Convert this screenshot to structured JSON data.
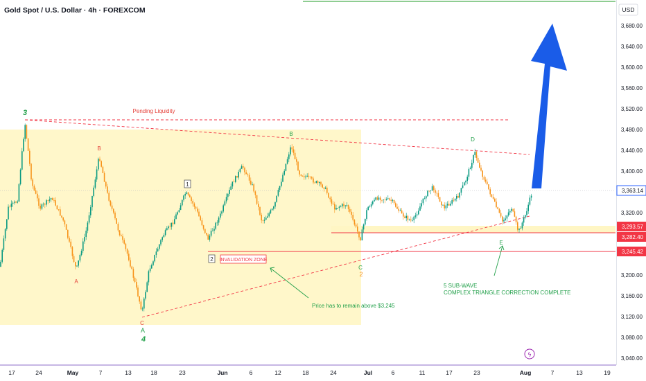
{
  "header": {
    "symbol_title": "Gold Spot / U.S. Dollar · 4h · FOREXCOM",
    "currency_label": "USD"
  },
  "price_axis": {
    "ticks": [
      "3,680.00",
      "3,640.00",
      "3,600.00",
      "3,560.00",
      "3,520.00",
      "3,480.00",
      "3,440.00",
      "3,400.00",
      "3,320.00",
      "3,200.00",
      "3,160.00",
      "3,120.00",
      "3,080.00",
      "3,040.00"
    ],
    "badges": [
      {
        "label": "3,363.14",
        "color": "#2962ff"
      },
      {
        "label": "3,293.57",
        "color": "#f23645"
      },
      {
        "label": "3,282.40",
        "color": "#f23645"
      },
      {
        "label": "3,245.42",
        "color": "#f23645"
      }
    ]
  },
  "time_axis": {
    "ticks": [
      "17",
      "24",
      "May",
      "7",
      "13",
      "18",
      "23",
      "Jun",
      "6",
      "12",
      "18",
      "24",
      "Jul",
      "6",
      "11",
      "17",
      "23",
      "Aug",
      "7",
      "13",
      "19"
    ]
  },
  "annotations": {
    "pending_liquidity": "Pending Liquidity",
    "invalidation_zone": "INVALIDATION ZONE",
    "price_note": "Price has to remain above $3,245",
    "subwave_line1": "5 SUB-WAVE",
    "subwave_line2": "COMPLEX TRIANGLE CORRECTION COMPLETE",
    "wave_3": "3",
    "wave_4": "4",
    "wave_A_low": "A",
    "wave_A_left": "A",
    "wave_B_left": "B",
    "wave_C_bottom": "C",
    "wave_B_mid": "B",
    "wave_C_mid": "C",
    "wave_2_mid": "2",
    "wave_D": "D",
    "wave_E": "E",
    "box_1": "1",
    "box_2": "2"
  },
  "colors": {
    "up_candle": "#089981",
    "down_candle": "#f7931a",
    "zone_fill": "#fff6c4",
    "arrow_blue": "#1a5ce8",
    "red_line": "#f23645",
    "wave_green": "#22a04a",
    "wave_red": "#e5413a"
  }
}
